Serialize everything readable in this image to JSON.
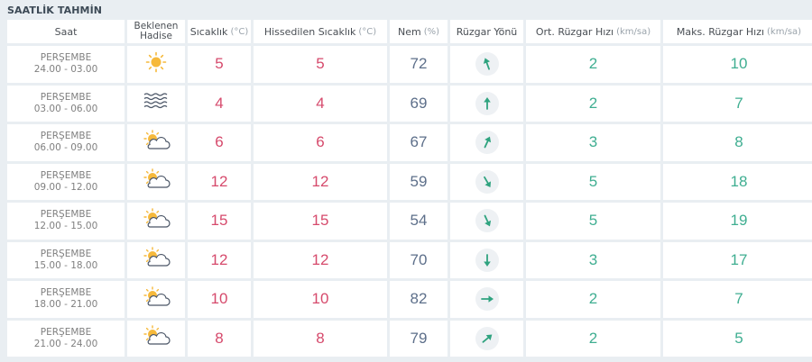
{
  "section_title": "SAATLİK TAHMİN",
  "headers": {
    "saat": "Saat",
    "hadise_line1": "Beklenen",
    "hadise_line2": "Hadise",
    "sicaklik": "Sıcaklık",
    "sicaklik_unit": "(°C)",
    "hissedilen": "Hissedilen Sıcaklık",
    "hissedilen_unit": "(°C)",
    "nem": "Nem",
    "nem_unit": "(%)",
    "ruzgar_yonu": "Rüzgar Yönü",
    "ort_ruzgar": "Ort. Rüzgar Hızı",
    "ort_ruzgar_unit": "(km/sa)",
    "maks_ruzgar": "Maks. Rüzgar Hızı",
    "maks_ruzgar_unit": "(km/sa)"
  },
  "colors": {
    "temperature": "#d64a6c",
    "humidity": "#5d6f8a",
    "wind_speed": "#3fae91",
    "wind_arrow": "#2fa37f",
    "sun": "#f6b93b"
  },
  "rows": [
    {
      "day": "PERŞEMBE",
      "time": "24.00 - 03.00",
      "icon": "sun-icon",
      "temp": "5",
      "feels": "5",
      "humidity": "72",
      "wind_dir_deg": 340,
      "avg_wind": "2",
      "max_wind": "10"
    },
    {
      "day": "PERŞEMBE",
      "time": "03.00 - 06.00",
      "icon": "fog-icon",
      "temp": "4",
      "feels": "4",
      "humidity": "69",
      "wind_dir_deg": 0,
      "avg_wind": "2",
      "max_wind": "7"
    },
    {
      "day": "PERŞEMBE",
      "time": "06.00 - 09.00",
      "icon": "partly-cloudy-icon",
      "temp": "6",
      "feels": "6",
      "humidity": "67",
      "wind_dir_deg": 25,
      "avg_wind": "3",
      "max_wind": "8"
    },
    {
      "day": "PERŞEMBE",
      "time": "09.00 - 12.00",
      "icon": "partly-cloudy-icon",
      "temp": "12",
      "feels": "12",
      "humidity": "59",
      "wind_dir_deg": 150,
      "avg_wind": "5",
      "max_wind": "18"
    },
    {
      "day": "PERŞEMBE",
      "time": "12.00 - 15.00",
      "icon": "partly-cloudy-icon",
      "temp": "15",
      "feels": "15",
      "humidity": "54",
      "wind_dir_deg": 155,
      "avg_wind": "5",
      "max_wind": "19"
    },
    {
      "day": "PERŞEMBE",
      "time": "15.00 - 18.00",
      "icon": "partly-cloudy-icon",
      "temp": "12",
      "feels": "12",
      "humidity": "70",
      "wind_dir_deg": 180,
      "avg_wind": "3",
      "max_wind": "17"
    },
    {
      "day": "PERŞEMBE",
      "time": "18.00 - 21.00",
      "icon": "partly-cloudy-icon",
      "temp": "10",
      "feels": "10",
      "humidity": "82",
      "wind_dir_deg": 90,
      "avg_wind": "2",
      "max_wind": "7"
    },
    {
      "day": "PERŞEMBE",
      "time": "21.00 - 24.00",
      "icon": "partly-cloudy-icon",
      "temp": "8",
      "feels": "8",
      "humidity": "79",
      "wind_dir_deg": 50,
      "avg_wind": "2",
      "max_wind": "5"
    }
  ]
}
